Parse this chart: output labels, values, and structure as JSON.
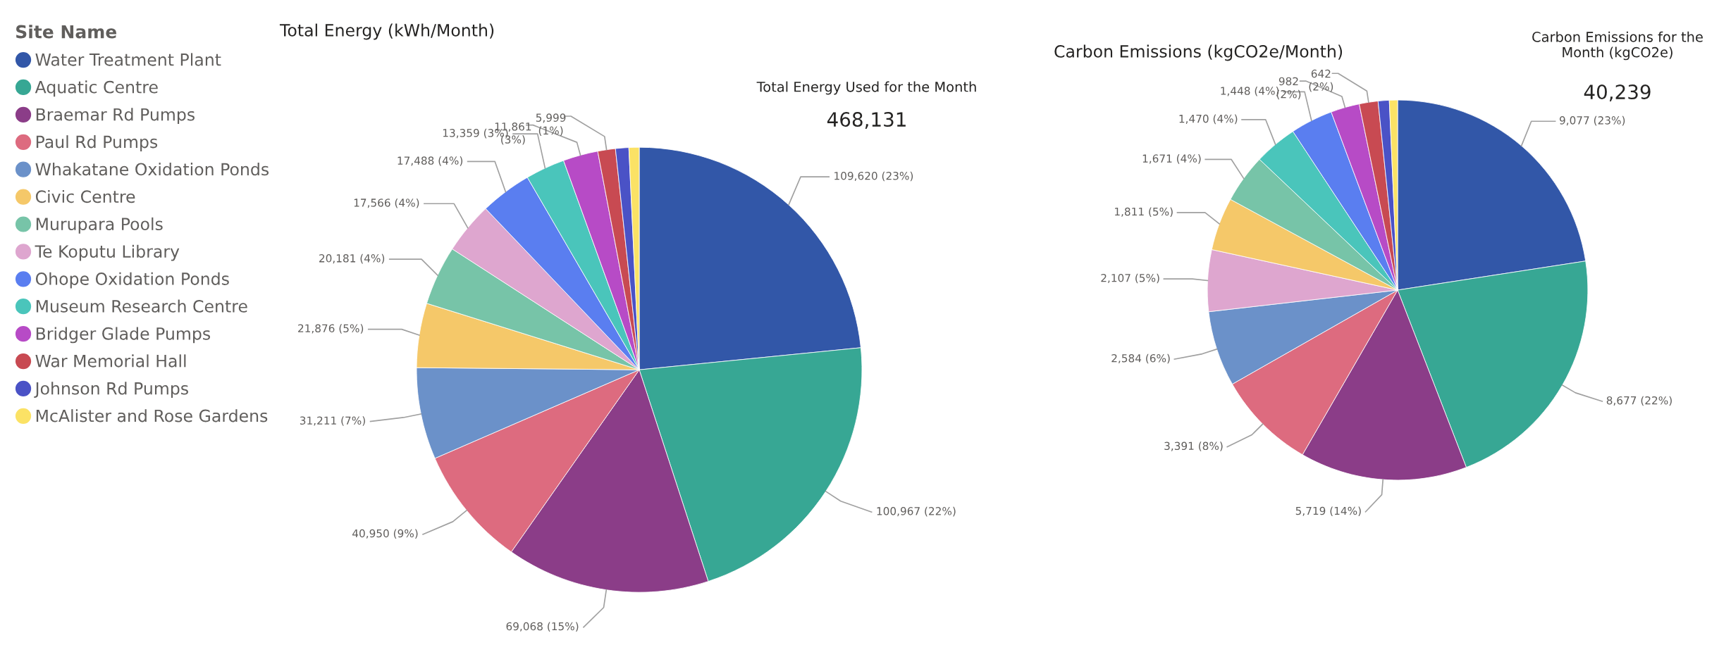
{
  "chart_data": [
    {
      "type": "pie",
      "title": "Total Energy (kWh/Month)",
      "legend": "left",
      "legend_title": "Site Name",
      "categories": [
        "Water Treatment Plant",
        "Aquatic Centre",
        "Braemar Rd Pumps",
        "Paul Rd Pumps",
        "Whakatane Oxidation Ponds",
        "Civic Centre",
        "Murupara Pools",
        "Te Koputu Library",
        "Ohope Oxidation Ponds",
        "Museum Research Centre",
        "Bridger Glade Pumps",
        "War Memorial Hall",
        "Johnson Rd Pumps",
        "McAlister and Rose Gardens"
      ],
      "values": [
        109620,
        100967,
        69068,
        40950,
        31211,
        21876,
        20181,
        17566,
        17488,
        13359,
        11861,
        5999,
        4500,
        3485
      ],
      "value_labels": [
        "109,620 (23%)",
        "100,967 (22%)",
        "69,068 (15%)",
        "40,950 (9%)",
        "31,211 (7%)",
        "21,876 (5%)",
        "20,181 (4%)",
        "17,566 (4%)",
        "17,488 (4%)",
        "13,359 (3%)",
        "11,861\n(3%)",
        "5,999\n(1%)",
        null,
        null
      ],
      "colors": [
        "#3257a8",
        "#37a794",
        "#8b3d88",
        "#dd6b7f",
        "#6b91c9",
        "#f5c869",
        "#77c4a8",
        "#dea6cf",
        "#5a7ef0",
        "#4ac5bb",
        "#b74bc6",
        "#c84a52",
        "#4a52c6",
        "#fbe265"
      ]
    },
    {
      "type": "other",
      "title": "Total Energy Used for the Month",
      "annotations": [
        "468,131"
      ]
    },
    {
      "type": "pie",
      "title": "Carbon Emissions (kgCO2e/Month)",
      "categories": [
        null,
        null,
        null,
        null,
        null,
        null,
        null,
        null,
        null,
        null,
        null,
        null,
        null,
        null
      ],
      "values": [
        9077,
        8677,
        5719,
        3391,
        2584,
        2107,
        1811,
        1671,
        1470,
        1448,
        982,
        642,
        380,
        280
      ],
      "value_labels": [
        "9,077 (23%)",
        "8,677 (22%)",
        "5,719 (14%)",
        "3,391 (8%)",
        "2,584 (6%)",
        "2,107 (5%)",
        "1,811 (5%)",
        "1,671 (4%)",
        "1,470 (4%)",
        "1,448 (4%)",
        "982\n(2%)",
        "642\n(2%)",
        null,
        null
      ],
      "colors": [
        "#3257a8",
        "#37a794",
        "#8b3d88",
        "#dd6b7f",
        "#6b91c9",
        "#dea6cf",
        "#f5c869",
        "#77c4a8",
        "#4ac5bb",
        "#5a7ef0",
        "#b74bc6",
        "#c84a52",
        "#4a52c6",
        "#fbe265"
      ]
    },
    {
      "type": "other",
      "title": "Carbon Emissions for the\nMonth (kgCO2e)",
      "annotations": [
        "40,239"
      ]
    }
  ]
}
